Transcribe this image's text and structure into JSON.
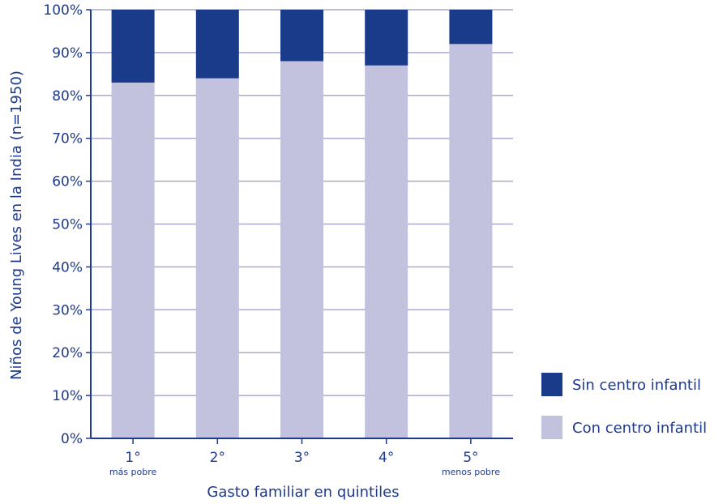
{
  "chart_data": {
    "type": "bar",
    "stacked": true,
    "categories": [
      "1°",
      "2°",
      "3°",
      "4°",
      "5°"
    ],
    "category_sublabels": [
      "más pobre",
      "",
      "",
      "",
      "menos pobre"
    ],
    "series": [
      {
        "name": "Con centro infantil",
        "color": "#c2c2df",
        "values": [
          83,
          84,
          88,
          87,
          92
        ]
      },
      {
        "name": "Sin centro infantil",
        "color": "#1a3a8a",
        "values": [
          17,
          16,
          12,
          13,
          8
        ]
      }
    ],
    "yticks": [
      "0%",
      "10%",
      "20%",
      "30%",
      "40%",
      "50%",
      "60%",
      "70%",
      "80%",
      "90%",
      "100%"
    ],
    "ylim": [
      0,
      100
    ],
    "xlabel": "Gasto familiar en quintiles",
    "ylabel": "Niños de Young Lives en la India (n=1950)",
    "grid": true,
    "legend_position": "right-bottom",
    "legend_order": [
      "Sin centro infantil",
      "Con centro infantil"
    ],
    "axis_color": "#1e3a8c",
    "grid_color": "#a9a9d0"
  }
}
